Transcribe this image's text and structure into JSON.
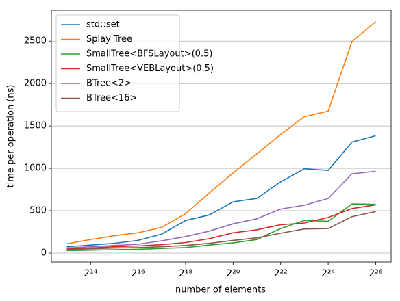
{
  "chart_data": {
    "type": "line",
    "xlabel": "number of elements",
    "ylabel": "time per operation (ns)",
    "x": [
      8192,
      16384,
      32768,
      65536,
      131072,
      262144,
      524288,
      1048576,
      2097152,
      4194304,
      8388608,
      16777216,
      33554432,
      67108864
    ],
    "xscale": "log2",
    "xlim": [
      5221,
      105300000
    ],
    "xticks": [
      {
        "value": 16384,
        "label": "2¹⁴"
      },
      {
        "value": 65536,
        "label": "2¹⁶"
      },
      {
        "value": 262144,
        "label": "2¹⁸"
      },
      {
        "value": 1048576,
        "label": "2²⁰"
      },
      {
        "value": 4194304,
        "label": "2²²"
      },
      {
        "value": 16777216,
        "label": "2²⁴"
      },
      {
        "value": 67108864,
        "label": "2²⁶"
      }
    ],
    "ylim": [
      -105,
      2865
    ],
    "yticks": [
      0,
      500,
      1000,
      1500,
      2000,
      2500
    ],
    "grid": "y",
    "legend": "upper left",
    "series": [
      {
        "name": "std::set",
        "color": "#1f77b4",
        "values": [
          75,
          95,
          115,
          150,
          225,
          385,
          450,
          605,
          645,
          840,
          995,
          975,
          1310,
          1385
        ]
      },
      {
        "name": "Splay Tree",
        "color": "#ff7f0e",
        "values": [
          110,
          160,
          205,
          240,
          305,
          465,
          710,
          945,
          1170,
          1400,
          1610,
          1675,
          2495,
          2730
        ]
      },
      {
        "name": "SmallTree<BFSLayout>(0.5)",
        "color": "#2ca02c",
        "values": [
          30,
          35,
          40,
          45,
          55,
          65,
          95,
          120,
          160,
          290,
          385,
          375,
          580,
          575
        ]
      },
      {
        "name": "SmallTree<VEBLayout>(0.5)",
        "color": "#d62728",
        "values": [
          50,
          60,
          75,
          85,
          100,
          125,
          170,
          240,
          275,
          335,
          355,
          420,
          525,
          570
        ]
      },
      {
        "name": "BTree<2>",
        "color": "#9467bd",
        "values": [
          60,
          75,
          90,
          105,
          145,
          195,
          260,
          345,
          405,
          520,
          565,
          645,
          935,
          965
        ]
      },
      {
        "name": "BTree<16>",
        "color": "#8c564b",
        "values": [
          40,
          50,
          60,
          65,
          75,
          90,
          115,
          150,
          180,
          235,
          285,
          290,
          430,
          490
        ]
      }
    ]
  }
}
